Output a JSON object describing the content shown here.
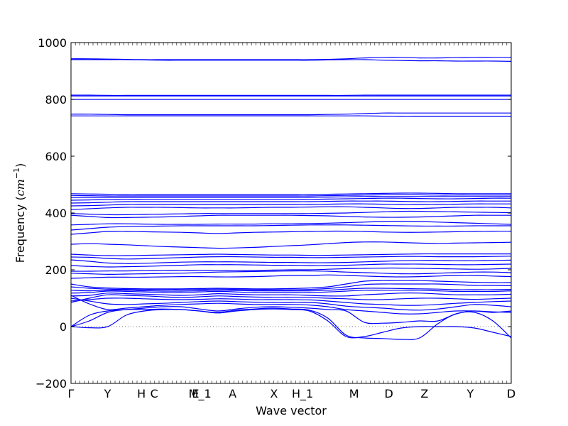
{
  "chart_data": {
    "type": "line",
    "title": "",
    "xlabel": "Wave vector",
    "ylabel": {
      "prefix": "Frequency (",
      "math_base": "cm",
      "math_sup": "−1",
      "suffix": ")"
    },
    "ylim": [
      -200,
      1000
    ],
    "yticks": [
      -200,
      0,
      200,
      400,
      600,
      800,
      1000
    ],
    "ytick_labels": [
      "−200",
      "0",
      "200",
      "400",
      "600",
      "800",
      "1000"
    ],
    "xlim": [
      0,
      1
    ],
    "xticks": [
      {
        "label": "Γ",
        "x": 0.0
      },
      {
        "label": "Y",
        "x": 0.083
      },
      {
        "label": "H",
        "x": 0.16
      },
      {
        "label": "C",
        "x": 0.189
      },
      {
        "label": "E",
        "x": 0.283
      },
      {
        "label": "M_1",
        "x": 0.293
      },
      {
        "label": "A",
        "x": 0.367
      },
      {
        "label": "X",
        "x": 0.461
      },
      {
        "label": "H_1",
        "x": 0.526
      },
      {
        "label": "M",
        "x": 0.643
      },
      {
        "label": "D",
        "x": 0.722
      },
      {
        "label": "Z",
        "x": 0.803
      },
      {
        "label": "Y",
        "x": 0.907
      },
      {
        "label": "D",
        "x": 1.0
      }
    ],
    "zero_line": {
      "y": 0,
      "style": "dotted"
    },
    "line_color": "#0000ff",
    "series": [
      {
        "y": [
          0,
          -4,
          0,
          40,
          55,
          60,
          60,
          55,
          48,
          55,
          60,
          62,
          60,
          55,
          20,
          -35,
          -35,
          -20,
          -5,
          0,
          0,
          0,
          -5,
          -20,
          -35
        ]
      },
      {
        "y": [
          0,
          20,
          50,
          60,
          60,
          62,
          60,
          55,
          50,
          58,
          62,
          65,
          62,
          58,
          30,
          -30,
          -40,
          -42,
          -45,
          -40,
          10,
          45,
          50,
          20,
          -40
        ]
      },
      {
        "y": [
          0,
          40,
          55,
          60,
          65,
          70,
          70,
          62,
          55,
          62,
          68,
          70,
          68,
          65,
          60,
          55,
          15,
          12,
          15,
          20,
          20,
          45,
          55,
          50,
          55
        ]
      },
      {
        "y": [
          110,
          80,
          60,
          65,
          70,
          75,
          78,
          80,
          82,
          80,
          78,
          78,
          78,
          76,
          70,
          60,
          55,
          50,
          45,
          45,
          50,
          55,
          55,
          52,
          50
        ]
      },
      {
        "y": [
          100,
          90,
          80,
          78,
          80,
          82,
          85,
          88,
          90,
          88,
          86,
          85,
          85,
          85,
          80,
          72,
          68,
          65,
          60,
          58,
          62,
          70,
          78,
          75,
          70
        ]
      },
      {
        "y": [
          90,
          95,
          100,
          100,
          98,
          96,
          95,
          96,
          98,
          97,
          95,
          95,
          95,
          94,
          90,
          85,
          80,
          78,
          75,
          75,
          78,
          82,
          85,
          88,
          90
        ]
      },
      {
        "y": [
          85,
          100,
          112,
          110,
          108,
          105,
          102,
          105,
          108,
          106,
          104,
          103,
          103,
          102,
          100,
          98,
          95,
          95,
          98,
          100,
          100,
          98,
          96,
          98,
          100
        ]
      },
      {
        "y": [
          108,
          110,
          118,
          116,
          114,
          112,
          110,
          112,
          116,
          114,
          112,
          112,
          112,
          110,
          108,
          108,
          112,
          115,
          118,
          118,
          115,
          112,
          112,
          112,
          114
        ]
      },
      {
        "y": [
          118,
          120,
          125,
          124,
          122,
          120,
          120,
          122,
          124,
          122,
          120,
          120,
          120,
          120,
          122,
          125,
          128,
          128,
          128,
          128,
          126,
          124,
          124,
          124,
          126
        ]
      },
      {
        "y": [
          128,
          126,
          128,
          128,
          126,
          125,
          125,
          126,
          128,
          127,
          126,
          126,
          126,
          126,
          128,
          132,
          135,
          135,
          134,
          133,
          132,
          130,
          130,
          130,
          131
        ]
      },
      {
        "y": [
          140,
          135,
          132,
          131,
          130,
          130,
          130,
          131,
          132,
          131,
          130,
          130,
          130,
          131,
          134,
          140,
          148,
          150,
          150,
          150,
          150,
          148,
          145,
          145,
          144
        ]
      },
      {
        "y": [
          150,
          140,
          136,
          134,
          133,
          133,
          133,
          134,
          135,
          134,
          133,
          133,
          134,
          136,
          140,
          150,
          160,
          162,
          162,
          162,
          160,
          158,
          156,
          155,
          155
        ]
      },
      {
        "y": [
          170,
          172,
          174,
          174,
          174,
          175,
          176,
          176,
          175,
          175,
          176,
          178,
          180,
          180,
          182,
          180,
          178,
          176,
          175,
          176,
          178,
          180,
          180,
          178,
          176
        ]
      },
      {
        "y": [
          188,
          186,
          184,
          185,
          186,
          187,
          188,
          190,
          192,
          193,
          194,
          195,
          196,
          196,
          195,
          192,
          190,
          188,
          186,
          186,
          188,
          190,
          192,
          192,
          190
        ]
      },
      {
        "y": [
          195,
          195,
          196,
          196,
          197,
          198,
          198,
          198,
          197,
          197,
          198,
          199,
          200,
          200,
          202,
          204,
          205,
          206,
          206,
          205,
          204,
          203,
          202,
          203,
          205
        ]
      },
      {
        "y": [
          215,
          212,
          210,
          211,
          212,
          214,
          216,
          218,
          218,
          218,
          217,
          216,
          216,
          215,
          215,
          216,
          218,
          220,
          220,
          220,
          219,
          218,
          218,
          219,
          220
        ]
      },
      {
        "y": [
          235,
          230,
          224,
          222,
          223,
          225,
          227,
          228,
          228,
          228,
          227,
          226,
          226,
          225,
          225,
          226,
          228,
          230,
          232,
          233,
          233,
          232,
          232,
          233,
          234
        ]
      },
      {
        "y": [
          245,
          244,
          240,
          238,
          239,
          241,
          243,
          245,
          246,
          246,
          245,
          244,
          244,
          243,
          243,
          244,
          245,
          246,
          247,
          247,
          246,
          246,
          246,
          247,
          248
        ]
      },
      {
        "y": [
          255,
          252,
          250,
          250,
          251,
          252,
          253,
          254,
          255,
          254,
          253,
          252,
          252,
          251,
          251,
          252,
          253,
          254,
          255,
          256,
          256,
          256,
          256,
          256,
          256
        ]
      },
      {
        "y": [
          290,
          292,
          290,
          288,
          285,
          282,
          280,
          278,
          276,
          277,
          279,
          282,
          285,
          288,
          292,
          296,
          298,
          298,
          296,
          294,
          293,
          294,
          295,
          296,
          297
        ]
      },
      {
        "y": [
          325,
          330,
          335,
          335,
          334,
          333,
          332,
          330,
          328,
          330,
          332,
          333,
          334,
          335,
          336,
          336,
          335,
          333,
          332,
          332,
          333,
          334,
          335,
          336,
          336
        ]
      },
      {
        "y": [
          340,
          345,
          350,
          352,
          353,
          354,
          355,
          355,
          355,
          355,
          355,
          356,
          357,
          358,
          358,
          358,
          357,
          356,
          355,
          354,
          354,
          354,
          355,
          355,
          355
        ]
      },
      {
        "y": [
          358,
          360,
          362,
          362,
          361,
          360,
          360,
          360,
          361,
          361,
          361,
          362,
          362,
          363,
          364,
          366,
          368,
          370,
          371,
          370,
          368,
          366,
          364,
          362,
          360
        ]
      },
      {
        "y": [
          392,
          388,
          384,
          384,
          385,
          386,
          388,
          390,
          392,
          392,
          392,
          392,
          392,
          391,
          390,
          388,
          386,
          385,
          385,
          386,
          388,
          390,
          392,
          392,
          392
        ]
      },
      {
        "y": [
          398,
          396,
          394,
          394,
          395,
          396,
          397,
          398,
          398,
          398,
          398,
          398,
          398,
          398,
          399,
          400,
          402,
          404,
          406,
          406,
          405,
          404,
          403,
          402,
          401
        ]
      },
      {
        "y": [
          412,
          415,
          418,
          420,
          420,
          420,
          419,
          418,
          418,
          418,
          419,
          420,
          420,
          421,
          422,
          422,
          420,
          418,
          416,
          416,
          418,
          420,
          420,
          420,
          418
        ]
      },
      {
        "y": [
          425,
          426,
          428,
          430,
          430,
          430,
          430,
          430,
          430,
          430,
          430,
          430,
          430,
          430,
          431,
          432,
          432,
          431,
          430,
          430,
          430,
          431,
          432,
          432,
          432
        ]
      },
      {
        "y": [
          435,
          436,
          438,
          440,
          440,
          440,
          440,
          440,
          440,
          440,
          440,
          440,
          440,
          440,
          441,
          442,
          442,
          442,
          441,
          440,
          440,
          441,
          442,
          442,
          442
        ]
      },
      {
        "y": [
          445,
          446,
          447,
          448,
          448,
          448,
          448,
          448,
          448,
          448,
          448,
          448,
          448,
          448,
          449,
          450,
          451,
          452,
          452,
          451,
          450,
          450,
          451,
          452,
          452
        ]
      },
      {
        "y": [
          455,
          455,
          455,
          455,
          455,
          455,
          455,
          455,
          455,
          455,
          455,
          455,
          455,
          455,
          456,
          457,
          458,
          458,
          458,
          458,
          458,
          458,
          458,
          458,
          458
        ]
      },
      {
        "y": [
          462,
          461,
          460,
          460,
          460,
          460,
          460,
          460,
          460,
          460,
          460,
          460,
          460,
          460,
          461,
          462,
          463,
          464,
          464,
          464,
          463,
          463,
          463,
          463,
          463
        ]
      },
      {
        "y": [
          468,
          467,
          466,
          465,
          465,
          465,
          465,
          465,
          465,
          465,
          465,
          465,
          465,
          465,
          466,
          467,
          468,
          469,
          470,
          470,
          469,
          468,
          468,
          468,
          468
        ]
      },
      {
        "y": [
          742,
          742,
          742,
          742,
          742,
          742,
          742,
          742,
          742,
          742,
          742,
          742,
          742,
          742,
          742,
          742,
          742,
          741,
          740,
          740,
          740,
          740,
          740,
          740,
          740
        ]
      },
      {
        "y": [
          748,
          748,
          747,
          746,
          746,
          746,
          746,
          746,
          746,
          746,
          746,
          746,
          746,
          746,
          747,
          748,
          750,
          752,
          752,
          752,
          752,
          752,
          752,
          752,
          752
        ]
      },
      {
        "y": [
          800,
          800,
          800,
          800,
          800,
          800,
          800,
          800,
          800,
          800,
          800,
          800,
          800,
          800,
          800,
          800,
          800,
          800,
          800,
          800,
          800,
          800,
          800,
          800,
          800
        ]
      },
      {
        "y": [
          812,
          812,
          812,
          812,
          812,
          812,
          812,
          812,
          812,
          812,
          812,
          812,
          812,
          812,
          812,
          812,
          812,
          812,
          812,
          812,
          812,
          812,
          812,
          812,
          812
        ]
      },
      {
        "y": [
          815,
          815,
          814,
          814,
          814,
          814,
          814,
          814,
          814,
          814,
          814,
          814,
          814,
          814,
          814,
          814,
          815,
          815,
          815,
          815,
          815,
          815,
          815,
          815,
          815
        ]
      },
      {
        "y": [
          940,
          940,
          940,
          940,
          939,
          938,
          938,
          938,
          938,
          938,
          938,
          938,
          938,
          938,
          939,
          940,
          940,
          938,
          937,
          936,
          936,
          935,
          935,
          935,
          934
        ]
      },
      {
        "y": [
          943,
          943,
          942,
          941,
          940,
          940,
          940,
          940,
          940,
          940,
          940,
          940,
          940,
          940,
          941,
          943,
          946,
          948,
          948,
          946,
          946,
          947,
          948,
          948,
          948
        ]
      }
    ]
  }
}
